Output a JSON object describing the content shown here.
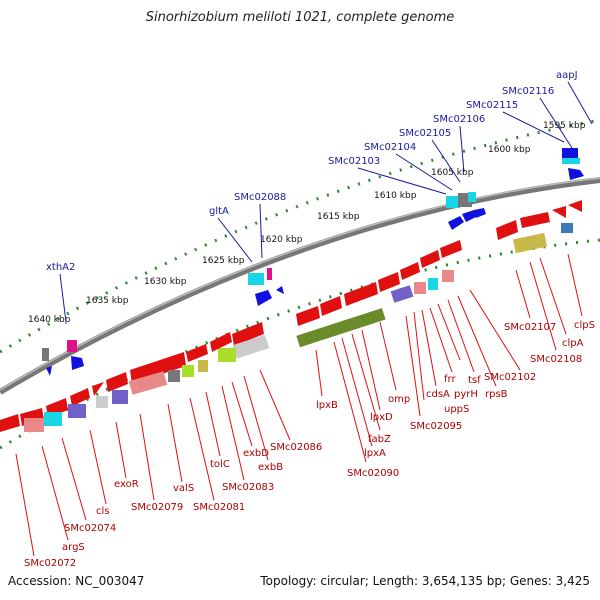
{
  "title": "Sinorhizobium meliloti 1021, complete genome",
  "accession_label": "Accession: NC_003047",
  "topology_label": "Topology: circular; Length: 3,654,135 bp; Genes: 3,425",
  "scale_labels": [
    "1595 kbp",
    "1600 kbp",
    "1605 kbp",
    "1610 kbp",
    "1615 kbp",
    "1620 kbp",
    "1625 kbp",
    "1630 kbp",
    "1635 kbp",
    "1640 kbp"
  ],
  "upper_gene_labels": [
    "aapJ",
    "SMc02116",
    "SMc02115",
    "SMc02106",
    "SMc02105",
    "SMc02104",
    "SMc02103",
    "SMc02088",
    "gltA",
    "xthA2"
  ],
  "lower_gene_labels": [
    "clpS",
    "clpA",
    "SMc02108",
    "SMc02107",
    "SMc02102",
    "rpsB",
    "tsf",
    "pyrH",
    "frr",
    "cdsA",
    "uppS",
    "SMc02095",
    "omp",
    "lpxD",
    "fabZ",
    "lpxA",
    "SMc02090",
    "lpxB",
    "SMc02086",
    "exbB",
    "exbD",
    "SMc02083",
    "tolC",
    "SMc02081",
    "valS",
    "SMc02079",
    "exoR",
    "cls",
    "SMc02074",
    "argS",
    "SMc02072"
  ],
  "colors": {
    "forward_gene": "#1010e0",
    "reverse_gene": "#e01010",
    "backbone": "#888888",
    "tick": "#2a8a2a",
    "label_blue": "#1a1aa0",
    "label_red": "#b00000"
  }
}
